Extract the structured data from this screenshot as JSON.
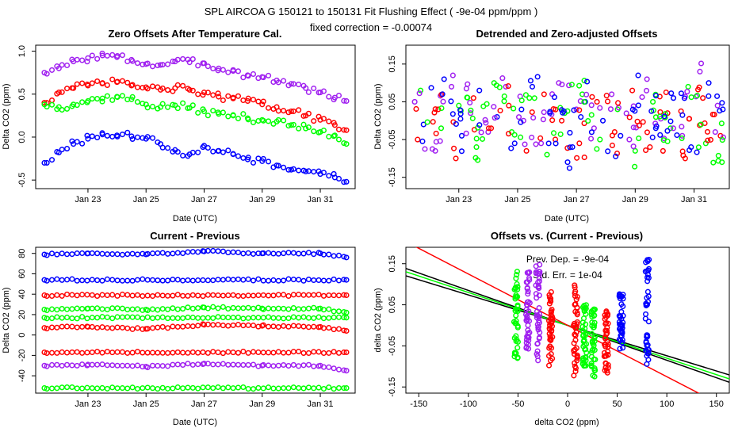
{
  "figure": {
    "title": "SPL   AIRCOA G   150121 to 150131   Fit Flushing Effect ( -9e-04 ppm/ppm )",
    "subtitle": "fixed correction = -0.00074"
  },
  "colors": {
    "blue": "#0000ff",
    "red": "#ff0000",
    "green": "#00ff00",
    "purple": "#a020f0",
    "black": "#000000"
  },
  "chart_data": [
    {
      "id": "zero-offsets",
      "type": "scatter",
      "title": "Zero Offsets After Temperature Cal.",
      "xlabel": "Date (UTC)",
      "ylabel": "Delta CO2 (ppm)",
      "xlim": [
        21.2,
        32.2
      ],
      "ylim": [
        -0.6,
        1.07
      ],
      "x_ticks": [
        23,
        25,
        27,
        29,
        31
      ],
      "x_tick_labels": [
        "Jan 23",
        "Jan 25",
        "Jan 27",
        "Jan 29",
        "Jan 31"
      ],
      "y_ticks": [
        -0.5,
        0.0,
        0.5,
        1.0
      ],
      "y_tick_labels": [
        "-0.5",
        "0.0",
        "0.5",
        "1.0"
      ],
      "series": [
        {
          "name": "purple",
          "color": "#a020f0",
          "x": [
            21.5,
            22.0,
            22.5,
            23.0,
            23.5,
            24.0,
            24.5,
            25.0,
            25.5,
            26.0,
            26.5,
            27.0,
            27.5,
            28.0,
            28.5,
            29.0,
            29.5,
            30.0,
            30.5,
            31.0,
            31.5,
            31.9
          ],
          "y": [
            0.75,
            0.8,
            0.88,
            0.92,
            0.95,
            0.93,
            0.9,
            0.85,
            0.84,
            0.88,
            0.87,
            0.86,
            0.8,
            0.77,
            0.72,
            0.7,
            0.66,
            0.62,
            0.57,
            0.52,
            0.46,
            0.42
          ]
        },
        {
          "name": "red",
          "color": "#ff0000",
          "x": [
            21.5,
            22.0,
            22.5,
            23.0,
            23.5,
            24.0,
            24.5,
            25.0,
            25.5,
            26.0,
            26.5,
            27.0,
            27.5,
            28.0,
            28.5,
            29.0,
            29.5,
            30.0,
            30.5,
            31.0,
            31.5,
            31.9
          ],
          "y": [
            0.4,
            0.52,
            0.57,
            0.6,
            0.63,
            0.64,
            0.6,
            0.58,
            0.55,
            0.57,
            0.55,
            0.52,
            0.47,
            0.45,
            0.42,
            0.38,
            0.35,
            0.3,
            0.25,
            0.2,
            0.14,
            0.08
          ]
        },
        {
          "name": "green",
          "color": "#00ff00",
          "x": [
            21.5,
            22.0,
            22.5,
            23.0,
            23.5,
            24.0,
            24.5,
            25.0,
            25.5,
            26.0,
            26.5,
            27.0,
            27.5,
            28.0,
            28.5,
            29.0,
            29.5,
            30.0,
            30.5,
            31.0,
            31.5,
            31.9
          ],
          "y": [
            0.38,
            0.35,
            0.38,
            0.42,
            0.45,
            0.47,
            0.44,
            0.38,
            0.35,
            0.37,
            0.34,
            0.3,
            0.27,
            0.25,
            0.22,
            0.2,
            0.18,
            0.14,
            0.1,
            0.06,
            0.02,
            -0.08
          ]
        },
        {
          "name": "blue",
          "color": "#0000ff",
          "x": [
            21.5,
            22.0,
            22.5,
            23.0,
            23.5,
            24.0,
            24.5,
            25.0,
            25.5,
            26.0,
            26.5,
            27.0,
            27.5,
            28.0,
            28.5,
            29.0,
            29.5,
            30.0,
            30.5,
            31.0,
            31.5,
            31.9
          ],
          "y": [
            -0.3,
            -0.18,
            -0.08,
            -0.02,
            0.03,
            0.02,
            0.01,
            -0.02,
            -0.08,
            -0.15,
            -0.2,
            -0.1,
            -0.16,
            -0.2,
            -0.26,
            -0.28,
            -0.33,
            -0.38,
            -0.4,
            -0.43,
            -0.47,
            -0.52
          ]
        }
      ]
    },
    {
      "id": "detrended",
      "type": "scatter",
      "title": "Detrended and Zero-adjusted Offsets",
      "xlabel": "Date (UTC)",
      "ylabel": "Delta CO2 (ppm)",
      "xlim": [
        21.2,
        32.2
      ],
      "ylim": [
        -0.18,
        0.2
      ],
      "x_ticks": [
        23,
        25,
        27,
        29,
        31
      ],
      "x_tick_labels": [
        "Jan 23",
        "Jan 25",
        "Jan 27",
        "Jan 29",
        "Jan 31"
      ],
      "y_ticks": [
        -0.15,
        -0.05,
        0.05,
        0.15
      ],
      "y_tick_labels": [
        "-0.15",
        "-0.05",
        "0.05",
        "0.15"
      ],
      "series": [
        {
          "name": "purple",
          "color": "#a020f0",
          "x": [
            21.5,
            22.2,
            22.8,
            23.4,
            24.0,
            24.6,
            25.2,
            25.8,
            26.4,
            27.0,
            27.6,
            28.2,
            28.8,
            29.4,
            30.0,
            30.6,
            31.2,
            31.8
          ],
          "y": [
            0.05,
            -0.08,
            0.12,
            0.02,
            -0.03,
            0.09,
            0.0,
            -0.06,
            0.1,
            0.03,
            -0.02,
            0.07,
            -0.05,
            0.11,
            0.01,
            -0.04,
            0.13,
            0.04
          ]
        },
        {
          "name": "red",
          "color": "#ff0000",
          "x": [
            21.6,
            22.3,
            22.9,
            23.5,
            24.1,
            24.7,
            25.3,
            25.9,
            26.5,
            27.1,
            27.7,
            28.3,
            28.9,
            29.5,
            30.1,
            30.7,
            31.3,
            31.9
          ],
          "y": [
            -0.05,
            0.03,
            -0.1,
            0.06,
            -0.02,
            0.04,
            -0.08,
            0.07,
            0.0,
            -0.06,
            0.05,
            -0.03,
            0.08,
            -0.07,
            0.02,
            -0.1,
            0.06,
            -0.04
          ]
        },
        {
          "name": "green",
          "color": "#00ff00",
          "x": [
            21.7,
            22.4,
            23.0,
            23.6,
            24.2,
            24.8,
            25.4,
            26.0,
            26.6,
            27.2,
            27.8,
            28.4,
            29.0,
            29.6,
            30.2,
            30.8,
            31.4,
            31.95
          ],
          "y": [
            0.08,
            -0.02,
            0.04,
            -0.07,
            0.1,
            -0.03,
            0.06,
            -0.09,
            0.02,
            0.07,
            -0.05,
            0.03,
            -0.08,
            0.05,
            -0.02,
            0.09,
            -0.06,
            -0.11
          ]
        },
        {
          "name": "blue",
          "color": "#0000ff",
          "x": [
            21.8,
            22.5,
            23.1,
            23.7,
            24.3,
            24.9,
            25.5,
            26.1,
            26.7,
            27.3,
            27.9,
            28.5,
            29.1,
            29.7,
            30.3,
            30.9,
            31.5,
            31.98
          ],
          "y": [
            -0.01,
            0.11,
            -0.04,
            0.08,
            0.01,
            -0.06,
            0.09,
            0.02,
            -0.11,
            0.05,
            0.0,
            -0.04,
            0.12,
            -0.02,
            0.06,
            -0.07,
            0.1,
            0.03
          ]
        }
      ]
    },
    {
      "id": "current-previous",
      "type": "scatter",
      "title": "Current - Previous",
      "xlabel": "Date (UTC)",
      "ylabel": "Delta CO2 (ppm)",
      "xlim": [
        21.2,
        32.2
      ],
      "ylim": [
        -57,
        86
      ],
      "x_ticks": [
        23,
        25,
        27,
        29,
        31
      ],
      "x_tick_labels": [
        "Jan 23",
        "Jan 25",
        "Jan 27",
        "Jan 29",
        "Jan 31"
      ],
      "y_ticks": [
        -40,
        -20,
        0,
        20,
        40,
        60,
        80
      ],
      "y_tick_labels": [
        "-40",
        "-20",
        "0",
        "20",
        "40",
        "60",
        "80"
      ],
      "series": [
        {
          "name": "blue",
          "color": "#0000ff",
          "x": [
            21.5,
            23.0,
            25.0,
            27.0,
            29.0,
            31.0,
            31.9
          ],
          "y": [
            79,
            80,
            79,
            82,
            80,
            80,
            76
          ]
        },
        {
          "name": "blue",
          "color": "#0000ff",
          "x": [
            21.5,
            31.9
          ],
          "y": [
            54,
            54
          ]
        },
        {
          "name": "red",
          "color": "#ff0000",
          "x": [
            21.5,
            31.9
          ],
          "y": [
            39,
            39
          ]
        },
        {
          "name": "green",
          "color": "#00ff00",
          "x": [
            21.5,
            23.0,
            25.0,
            27.0,
            29.0,
            31.0,
            31.9
          ],
          "y": [
            25,
            26,
            25,
            27,
            26,
            26,
            22
          ]
        },
        {
          "name": "green",
          "color": "#00ff00",
          "x": [
            21.5,
            31.9
          ],
          "y": [
            17,
            17
          ]
        },
        {
          "name": "red",
          "color": "#ff0000",
          "x": [
            21.5,
            23.0,
            25.0,
            27.0,
            29.0,
            31.0,
            31.9
          ],
          "y": [
            7,
            8,
            6,
            10,
            9,
            8,
            4
          ]
        },
        {
          "name": "red",
          "color": "#ff0000",
          "x": [
            21.5,
            31.9
          ],
          "y": [
            -17,
            -17
          ]
        },
        {
          "name": "purple",
          "color": "#a020f0",
          "x": [
            21.5,
            23.0,
            25.0,
            27.0,
            29.0,
            31.0,
            31.9
          ],
          "y": [
            -30,
            -29,
            -31,
            -28,
            -30,
            -30,
            -35
          ]
        },
        {
          "name": "green",
          "color": "#00ff00",
          "x": [
            21.5,
            31.9
          ],
          "y": [
            -52,
            -52
          ]
        }
      ]
    },
    {
      "id": "offsets-vs-diff",
      "type": "scatter",
      "title": "Offsets vs. (Current - Previous)",
      "xlabel": "delta CO2 (ppm)",
      "ylabel": "delta CO2 (ppm)",
      "xlim": [
        -163,
        163
      ],
      "ylim": [
        -0.165,
        0.19
      ],
      "x_ticks": [
        -150,
        -100,
        -50,
        0,
        50,
        100,
        150
      ],
      "x_tick_labels": [
        "-150",
        "-100",
        "-50",
        "0",
        "50",
        "100",
        "150"
      ],
      "y_ticks": [
        -0.15,
        -0.05,
        0.05,
        0.15
      ],
      "y_tick_labels": [
        "-0.15",
        "-0.05",
        "0.05",
        "0.15"
      ],
      "annotations": [
        "Prev. Dep. = -9e-04",
        "Std. Err. = 1e-04"
      ],
      "clusters": [
        {
          "color": "#00ff00",
          "x": -52,
          "y_min": -0.09,
          "y_max": 0.14
        },
        {
          "color": "#a020f0",
          "x": -40,
          "y_min": -0.06,
          "y_max": 0.13
        },
        {
          "color": "#a020f0",
          "x": -30,
          "y_min": -0.09,
          "y_max": 0.15
        },
        {
          "color": "#ff0000",
          "x": -17,
          "y_min": -0.1,
          "y_max": 0.09
        },
        {
          "color": "#ff0000",
          "x": 8,
          "y_min": -0.14,
          "y_max": 0.1
        },
        {
          "color": "#00ff00",
          "x": 17,
          "y_min": -0.1,
          "y_max": 0.05
        },
        {
          "color": "#00ff00",
          "x": 26,
          "y_min": -0.13,
          "y_max": 0.04
        },
        {
          "color": "#ff0000",
          "x": 39,
          "y_min": -0.12,
          "y_max": 0.04
        },
        {
          "color": "#0000ff",
          "x": 54,
          "y_min": -0.06,
          "y_max": 0.08
        },
        {
          "color": "#0000ff",
          "x": 80,
          "y_min": -0.1,
          "y_max": 0.16
        }
      ],
      "lines": [
        {
          "name": "black-1",
          "color": "#000000",
          "slope": -0.00074,
          "intercept": 0.0
        },
        {
          "name": "black-2",
          "color": "#000000",
          "slope": -0.00085,
          "intercept": 0.0
        },
        {
          "name": "green-fit",
          "color": "#00ff00",
          "slope": -0.0008,
          "intercept": 0.0
        },
        {
          "name": "red-fit",
          "color": "#ff0000",
          "slope": -0.00125,
          "intercept": 0.0
        }
      ]
    }
  ]
}
